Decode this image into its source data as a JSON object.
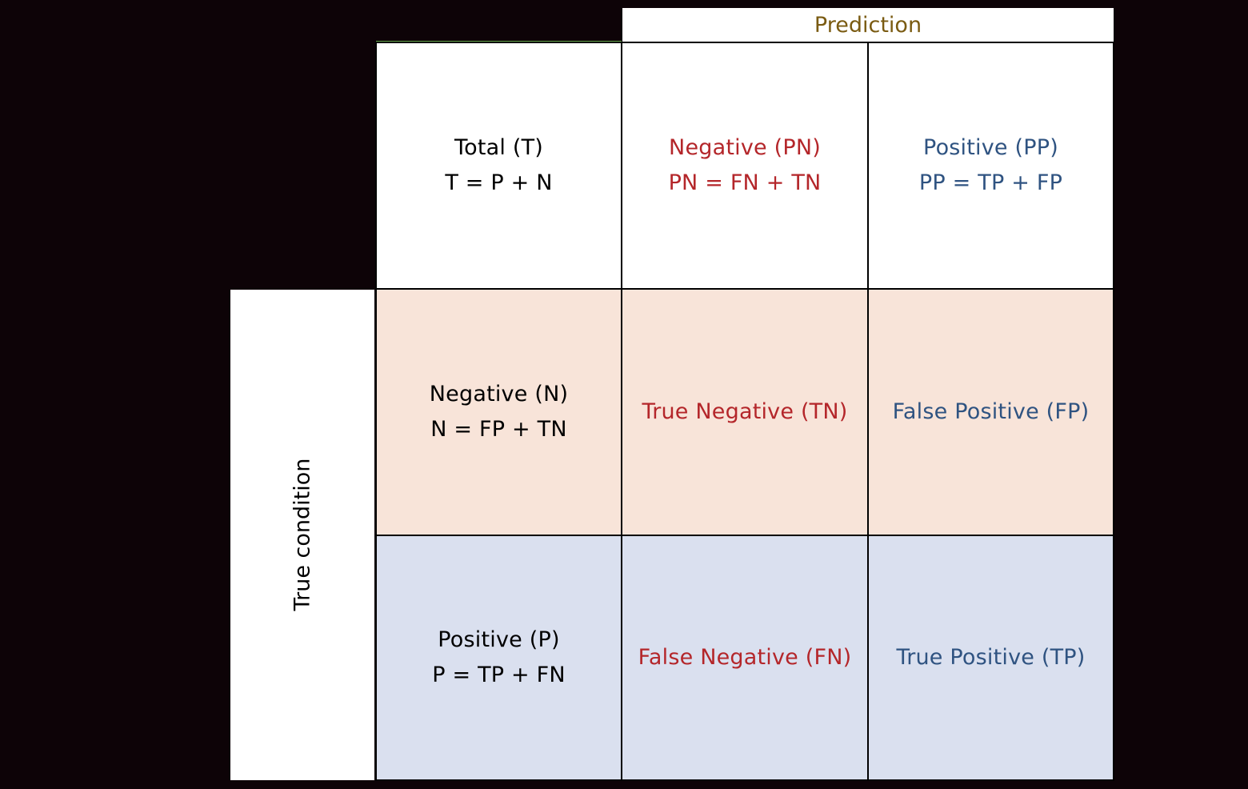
{
  "header": {
    "prediction": "Prediction",
    "true_condition": "True condition"
  },
  "top_row": {
    "total": {
      "title": "Total (T)",
      "formula": "T = P + N"
    },
    "pred_negative": {
      "title": "Negative (PN)",
      "formula": "PN = FN + TN"
    },
    "pred_positive": {
      "title": "Positive (PP)",
      "formula": "PP = TP + FP"
    }
  },
  "negative_row": {
    "label": {
      "title": "Negative (N)",
      "formula": "N = FP + TN"
    },
    "tn": "True Negative (TN)",
    "fp": "False Positive (FP)"
  },
  "positive_row": {
    "label": {
      "title": "Positive (P)",
      "formula": "P = TP + FN"
    },
    "fn": "False Negative (FN)",
    "tp": "True Positive (TP)"
  },
  "colors": {
    "negative_text": "#b4262a",
    "positive_text": "#2f5381",
    "header_text": "#7a5b12",
    "negative_row_fill": "#f8e4d9",
    "positive_row_fill": "#dae0ef",
    "background": "#0d0307"
  }
}
